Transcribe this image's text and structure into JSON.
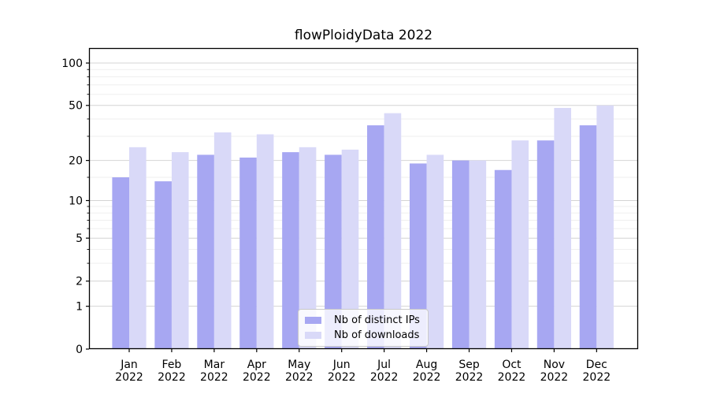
{
  "chart_data": {
    "type": "bar",
    "title": "flowPloidyData 2022",
    "categories": [
      "Jan",
      "Feb",
      "Mar",
      "Apr",
      "May",
      "Jun",
      "Jul",
      "Aug",
      "Sep",
      "Oct",
      "Nov",
      "Dec"
    ],
    "xtick_year": "2022",
    "series": [
      {
        "name": "Nb of distinct IPs",
        "color": "#a7a7f2",
        "values": [
          15,
          14,
          22,
          21,
          23,
          22,
          36,
          19,
          20,
          17,
          28,
          36
        ]
      },
      {
        "name": "Nb of downloads",
        "color": "#d9d9f8",
        "values": [
          25,
          23,
          32,
          31,
          25,
          24,
          44,
          22,
          20,
          28,
          48,
          50
        ]
      }
    ],
    "xlabel": "",
    "ylabel": "",
    "yscale": "log1p",
    "ylim": [
      0,
      127
    ],
    "yticks_major": [
      0,
      1,
      2,
      5,
      10,
      20,
      50,
      100
    ],
    "yticks_minor": [
      3,
      4,
      6,
      7,
      8,
      9,
      15,
      30,
      40,
      60,
      70,
      80,
      90
    ],
    "grid": "horizontal",
    "legend_position": "lower center",
    "colors": {
      "grid_major": "#d4d4d4",
      "grid_minor": "#efefef",
      "spine": "#000000",
      "text": "#000000"
    }
  }
}
